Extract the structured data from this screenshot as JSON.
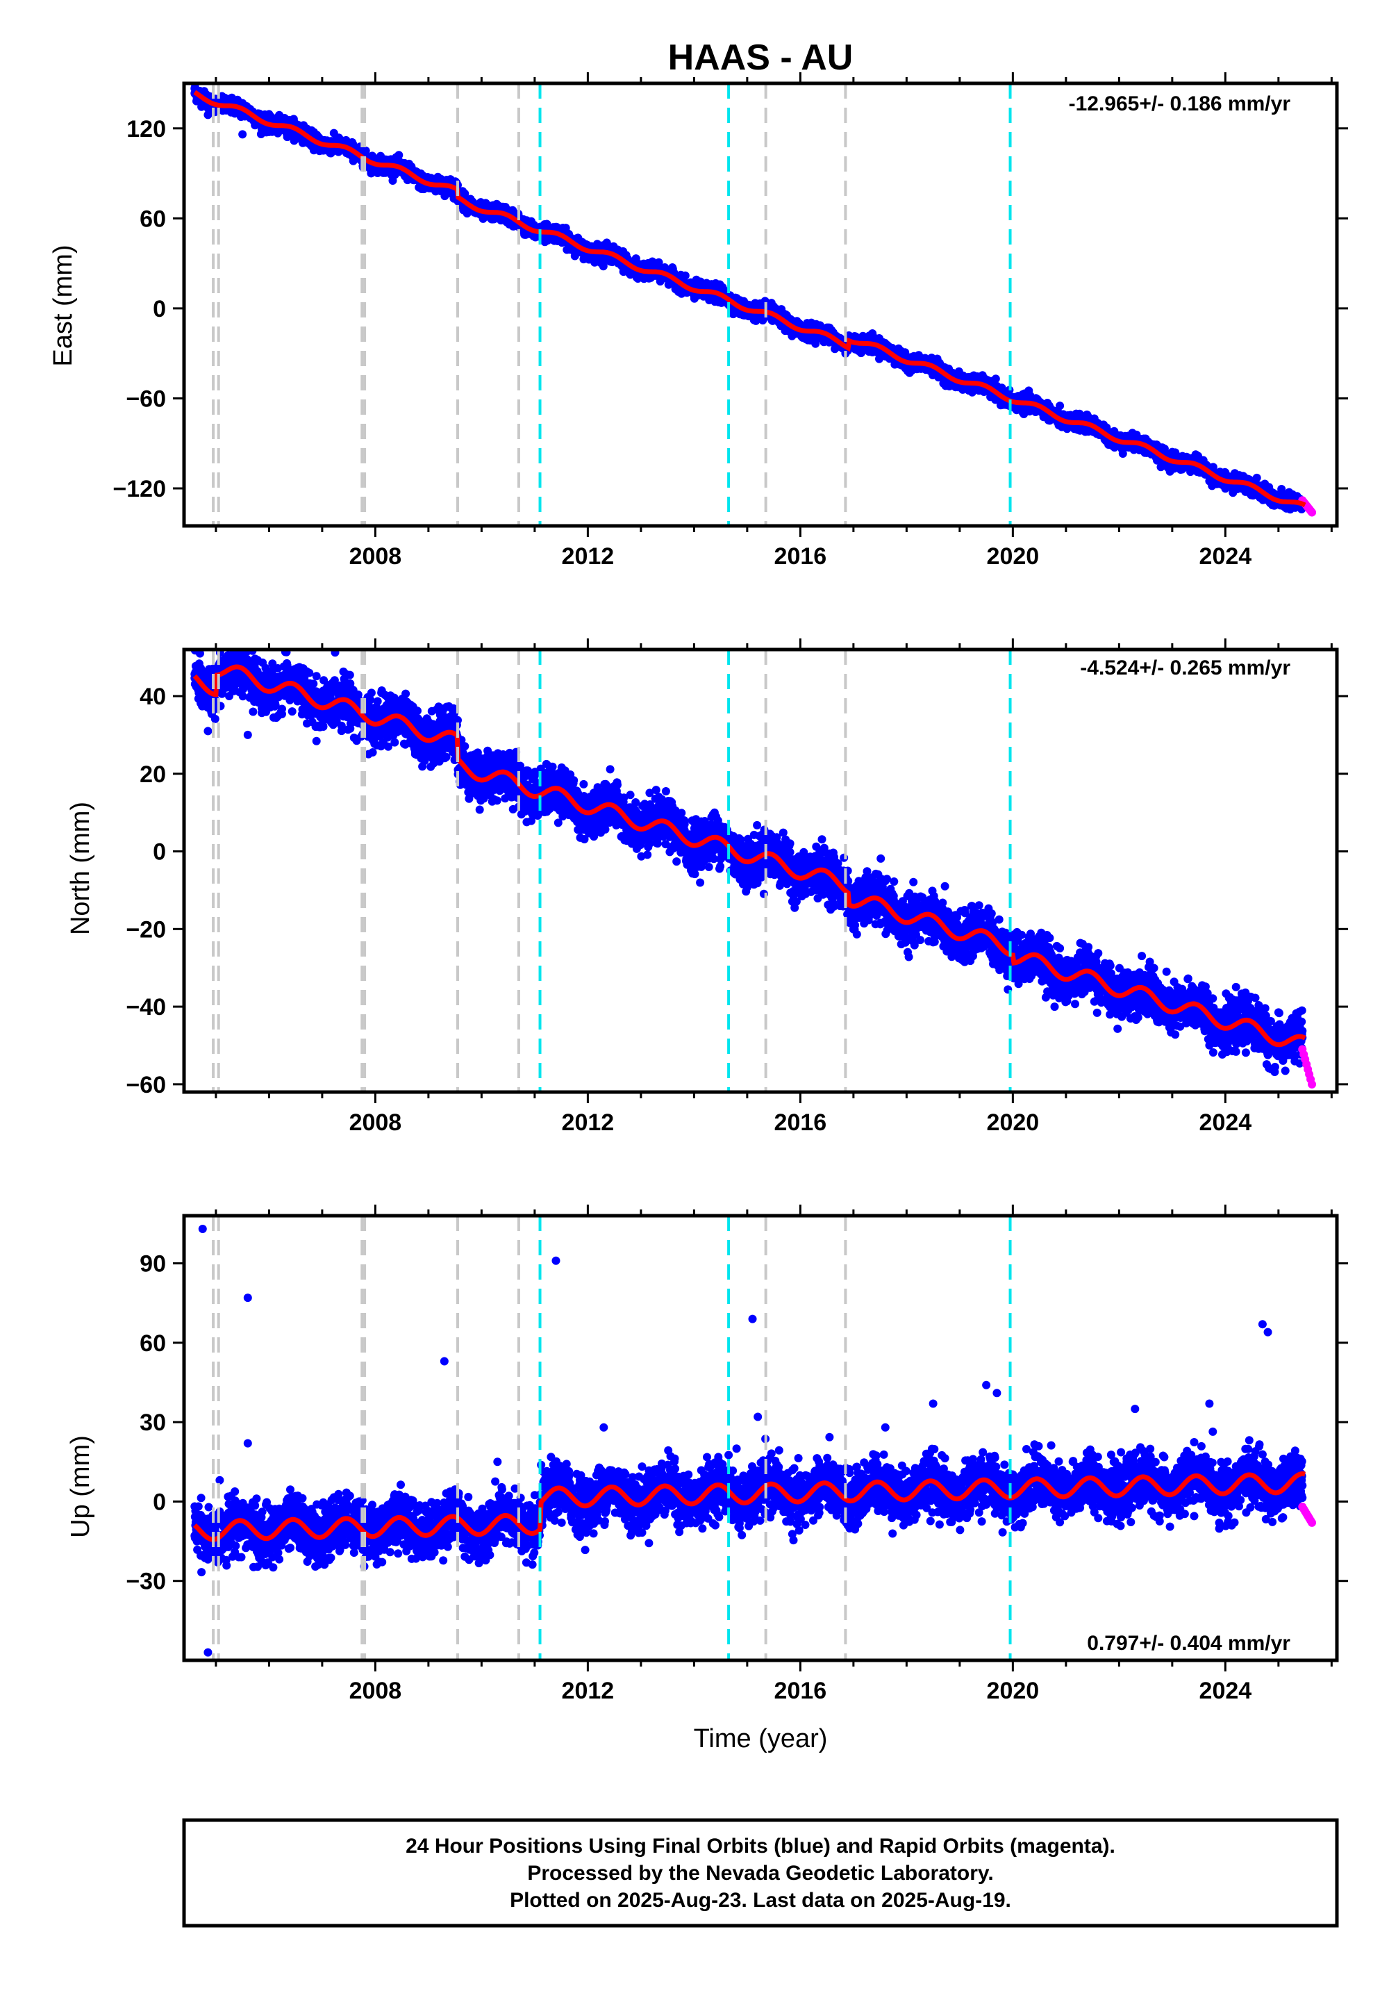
{
  "title": "HAAS - AU",
  "colors": {
    "final": "#0000ff",
    "rapid": "#ff00ff",
    "model": "#ff0000",
    "equipment_line": "#c8c8c8",
    "offset_line": "#00e5ee"
  },
  "chart_data": [
    {
      "type": "scatter",
      "panel": "east",
      "ylabel": "East (mm)",
      "xlabel": "",
      "rate_label": "-12.965+/- 0.186 mm/yr",
      "xlim": [
        2004.4,
        2026.1
      ],
      "ylim": [
        -145,
        150
      ],
      "yticks": [
        -120,
        -60,
        0,
        60,
        120
      ],
      "xticks": [
        2008,
        2012,
        2016,
        2020,
        2024
      ],
      "model": {
        "start": [
          2004.6,
          143
        ],
        "end": [
          2025.5,
          -133
        ],
        "steps": [
          [
            2009.55,
            -5
          ],
          [
            2016.9,
            5
          ]
        ],
        "seasonal_amp": 2,
        "noise": 2.5
      },
      "rapid": {
        "start": 2025.45,
        "end": 2025.63,
        "values": [
          -128,
          -136
        ]
      },
      "outliers": [
        [
          2004.85,
          129
        ],
        [
          2005.5,
          116
        ]
      ]
    },
    {
      "type": "scatter",
      "panel": "north",
      "ylabel": "North (mm)",
      "xlabel": "",
      "rate_label": "-4.524+/- 0.265 mm/yr",
      "xlim": [
        2004.4,
        2026.1
      ],
      "ylim": [
        -62,
        52
      ],
      "yticks": [
        -60,
        -40,
        -20,
        0,
        20,
        40
      ],
      "xticks": [
        2008,
        2012,
        2016,
        2020,
        2024
      ],
      "model": {
        "start": [
          2004.6,
          44
        ],
        "end": [
          2025.5,
          -50
        ],
        "steps": [
          [
            2005.0,
            5
          ],
          [
            2009.55,
            -6
          ],
          [
            2016.9,
            -3
          ],
          [
            2020.0,
            -2
          ]
        ],
        "seasonal_amp": 2,
        "noise": 3
      },
      "rapid": {
        "start": 2025.45,
        "end": 2025.63,
        "values": [
          -51,
          -60
        ]
      },
      "outliers": [
        [
          2004.7,
          51
        ],
        [
          2004.85,
          31
        ],
        [
          2005.6,
          30
        ]
      ]
    },
    {
      "type": "scatter",
      "panel": "up",
      "ylabel": "Up (mm)",
      "xlabel": "Time (year)",
      "rate_label": "0.797+/- 0.404 mm/yr",
      "xlim": [
        2004.4,
        2026.1
      ],
      "ylim": [
        -60,
        108
      ],
      "yticks": [
        -30,
        0,
        30,
        60,
        90
      ],
      "xticks": [
        2008,
        2012,
        2016,
        2020,
        2024
      ],
      "model": {
        "start": [
          2004.6,
          -11
        ],
        "end": [
          2025.5,
          7
        ],
        "steps": [
          [
            2011.1,
            10
          ]
        ],
        "seasonal_amp": 3.5,
        "noise": 5
      },
      "rapid": {
        "start": 2025.45,
        "end": 2025.63,
        "values": [
          -2,
          -8
        ]
      },
      "outliers": [
        [
          2004.75,
          103
        ],
        [
          2004.85,
          -57
        ],
        [
          2005.6,
          77
        ],
        [
          2005.6,
          22
        ],
        [
          2009.3,
          53
        ],
        [
          2011.4,
          91
        ],
        [
          2012.3,
          28
        ],
        [
          2014.8,
          20
        ],
        [
          2015.1,
          69
        ],
        [
          2015.2,
          32
        ],
        [
          2017.6,
          28
        ],
        [
          2018.5,
          37
        ],
        [
          2019.5,
          44
        ],
        [
          2019.7,
          41
        ],
        [
          2022.3,
          35
        ],
        [
          2023.7,
          37
        ],
        [
          2024.7,
          67
        ],
        [
          2024.8,
          64
        ],
        [
          2010.3,
          15
        ]
      ]
    }
  ],
  "event_lines": {
    "equipment": [
      2004.95,
      2005.05,
      2007.75,
      2007.8,
      2009.55,
      2010.7,
      2015.35,
      2016.85
    ],
    "offsets": [
      2011.1,
      2014.65,
      2019.95
    ]
  },
  "footer": {
    "line1": "24 Hour Positions Using Final Orbits (blue) and Rapid Orbits (magenta).",
    "line2": "Processed by the Nevada Geodetic Laboratory.",
    "line3": "Plotted on 2025-Aug-23. Last data on 2025-Aug-19."
  }
}
